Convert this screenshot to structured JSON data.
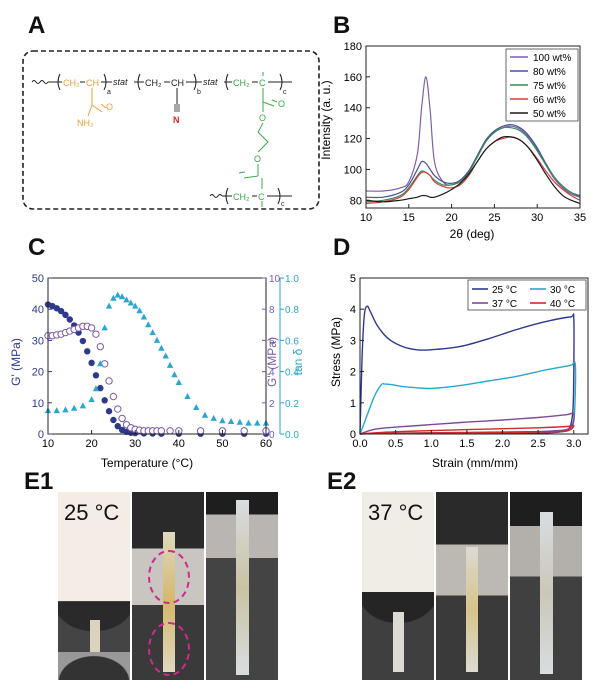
{
  "figure": {
    "panels": {
      "A": "A",
      "B": "B",
      "C": "C",
      "D": "D",
      "E1": "E1",
      "E2": "E2"
    },
    "chemistry": {
      "stat1": "stat",
      "stat2": "stat",
      "ch2": "CH₂",
      "ch": "CH",
      "ch2_b": "CH₂",
      "ch_b": "CH",
      "ch2_c": "CH₂",
      "c_c": "C",
      "c_bottom": "C",
      "ch2_bottom": "CH₂",
      "nh2": "NH₂",
      "n": "N",
      "o": "O",
      "o2": "O",
      "o3": "O",
      "o4": "O",
      "sub_a": "a",
      "sub_b": "b",
      "sub_c": "c",
      "sub_c2": "c",
      "colors": {
        "acrylamide": "#e8a13a",
        "nitrile": "#d42a2a",
        "pegda": "#3aaa4a",
        "backbone": "#222222"
      }
    },
    "photos": {
      "e1_temp": "25 °C",
      "e2_temp": "37 °C",
      "highlight_color": "#d02a8c"
    }
  },
  "chart_data": [
    {
      "id": "B",
      "type": "line",
      "title": "",
      "xlabel": "2θ (deg)",
      "ylabel": "Intensity (a. u.)",
      "xlim": [
        10,
        35
      ],
      "ylim": [
        75,
        180
      ],
      "xticks": [
        10,
        15,
        20,
        25,
        30,
        35
      ],
      "yticks": [
        80,
        100,
        120,
        140,
        160,
        180
      ],
      "legend_position": "top-right",
      "series": [
        {
          "name": "100 wt%",
          "color": "#7d5fb0",
          "x": [
            10,
            12,
            14,
            15,
            16,
            16.5,
            17,
            17.5,
            18,
            19,
            20,
            21,
            22,
            23,
            24,
            25,
            26,
            27,
            28,
            29,
            30,
            31,
            32,
            33,
            34,
            35
          ],
          "y": [
            86,
            86,
            88,
            92,
            110,
            140,
            160,
            138,
            105,
            92,
            90,
            93,
            99,
            108,
            118,
            124,
            127,
            128,
            126,
            121,
            113,
            103,
            94,
            88,
            84,
            82
          ]
        },
        {
          "name": "80 wt%",
          "color": "#4a4e9c",
          "x": [
            10,
            12,
            14,
            15,
            16,
            16.5,
            17,
            17.5,
            18,
            19,
            20,
            21,
            22,
            23,
            24,
            25,
            26,
            27,
            28,
            29,
            30,
            31,
            32,
            33,
            34,
            35
          ],
          "y": [
            82,
            82,
            85,
            90,
            100,
            105,
            104,
            100,
            96,
            92,
            91,
            93,
            99,
            109,
            119,
            125,
            128,
            129,
            127,
            122,
            114,
            104,
            95,
            89,
            85,
            83
          ]
        },
        {
          "name": "75 wt%",
          "color": "#2e8f5a",
          "x": [
            10,
            12,
            14,
            15,
            16,
            16.5,
            17,
            17.5,
            18,
            19,
            20,
            21,
            22,
            23,
            24,
            25,
            26,
            27,
            28,
            29,
            30,
            31,
            32,
            33,
            34,
            35
          ],
          "y": [
            79,
            80,
            83,
            88,
            96,
            99,
            98,
            96,
            93,
            90,
            90,
            92,
            98,
            108,
            118,
            124,
            127,
            127,
            125,
            120,
            112,
            103,
            95,
            89,
            85,
            82
          ]
        },
        {
          "name": "66 wt%",
          "color": "#d64040",
          "x": [
            10,
            12,
            14,
            15,
            16,
            16.5,
            17,
            17.5,
            18,
            19,
            20,
            21,
            22,
            23,
            24,
            25,
            26,
            27,
            28,
            29,
            30,
            31,
            32,
            33,
            34,
            35
          ],
          "y": [
            78,
            79,
            82,
            87,
            95,
            98,
            98,
            96,
            92,
            89,
            88,
            90,
            96,
            105,
            113,
            118,
            120,
            121,
            119,
            114,
            107,
            99,
            92,
            87,
            83,
            80
          ]
        },
        {
          "name": "50 wt%",
          "color": "#1a1a1a",
          "x": [
            10,
            12,
            14,
            15,
            16,
            16.5,
            17,
            17.5,
            18,
            19,
            20,
            21,
            22,
            23,
            24,
            25,
            26,
            27,
            28,
            29,
            30,
            31,
            32,
            33,
            34,
            35
          ],
          "y": [
            80,
            79,
            80,
            81,
            82,
            83,
            83,
            82,
            82,
            84,
            87,
            91,
            97,
            105,
            113,
            118,
            121,
            121,
            119,
            114,
            106,
            97,
            89,
            83,
            80,
            78
          ]
        }
      ]
    },
    {
      "id": "C",
      "type": "scatter",
      "title": "",
      "xlabel": "Temperature (°C)",
      "ylabel_left": "G' (MPa)",
      "ylabel_mid": "G'' (MPa)",
      "ylabel_right": "tan δ",
      "xlim": [
        10,
        60
      ],
      "ylim_left": [
        0,
        50
      ],
      "ylim_mid": [
        0,
        10
      ],
      "ylim_right": [
        0,
        1.0
      ],
      "xticks": [
        10,
        20,
        30,
        40,
        50,
        60
      ],
      "yticks_left": [
        0,
        10,
        20,
        30,
        40,
        50
      ],
      "yticks_mid": [
        0,
        2,
        4,
        6,
        8,
        10
      ],
      "yticks_right": [
        0.0,
        0.2,
        0.4,
        0.6,
        0.8,
        1.0
      ],
      "legend_position": "none",
      "series": [
        {
          "name": "G'",
          "axis": "left",
          "color": "#2d3a8c",
          "marker": "circle-filled",
          "x": [
            10,
            11,
            12,
            13,
            14,
            15,
            16,
            17,
            18,
            19,
            20,
            21,
            22,
            23,
            24,
            25,
            26,
            27,
            28,
            29,
            30,
            32,
            34,
            36,
            40,
            45,
            50,
            55,
            60
          ],
          "y": [
            41.5,
            41,
            40.3,
            39.4,
            38.2,
            36.7,
            34.8,
            32.5,
            29.8,
            26.5,
            22.8,
            18.8,
            14.7,
            10.8,
            7.3,
            4.5,
            2.5,
            1.3,
            0.7,
            0.4,
            0.3,
            0.2,
            0.15,
            0.1,
            0.1,
            0.1,
            0.1,
            0.1,
            0.1
          ]
        },
        {
          "name": "G''",
          "axis": "mid",
          "color": "#7a5aa8",
          "marker": "circle-open",
          "x": [
            10,
            11,
            12,
            13,
            14,
            15,
            16,
            17,
            18,
            19,
            20,
            21,
            22,
            23,
            24,
            25,
            26,
            27,
            28,
            29,
            30,
            31,
            32,
            33,
            34,
            35,
            36,
            38,
            40,
            45,
            50,
            55,
            60
          ],
          "y": [
            6.3,
            6.3,
            6.35,
            6.4,
            6.5,
            6.6,
            6.7,
            6.8,
            6.9,
            6.9,
            6.8,
            6.4,
            5.6,
            4.5,
            3.4,
            2.4,
            1.6,
            1.0,
            0.6,
            0.4,
            0.3,
            0.25,
            0.2,
            0.2,
            0.2,
            0.2,
            0.2,
            0.2,
            0.2,
            0.2,
            0.2,
            0.2,
            0.2
          ]
        },
        {
          "name": "tan δ",
          "axis": "right",
          "color": "#2aa6cf",
          "marker": "triangle",
          "x": [
            10,
            12,
            14,
            16,
            18,
            20,
            21,
            22,
            23,
            24,
            25,
            26,
            27,
            28,
            29,
            30,
            31,
            32,
            33,
            34,
            35,
            36,
            37,
            38,
            39,
            40,
            42,
            44,
            46,
            48,
            50,
            52,
            54,
            56,
            58,
            60
          ],
          "y": [
            0.15,
            0.15,
            0.155,
            0.165,
            0.18,
            0.22,
            0.29,
            0.45,
            0.68,
            0.82,
            0.87,
            0.89,
            0.88,
            0.86,
            0.84,
            0.82,
            0.79,
            0.75,
            0.7,
            0.65,
            0.6,
            0.55,
            0.5,
            0.44,
            0.38,
            0.33,
            0.24,
            0.17,
            0.12,
            0.1,
            0.085,
            0.08,
            0.075,
            0.07,
            0.07,
            0.07
          ]
        }
      ]
    },
    {
      "id": "D",
      "type": "line",
      "title": "",
      "xlabel": "Strain (mm/mm)",
      "ylabel": "Stress (MPa)",
      "xlim": [
        0,
        3.2
      ],
      "ylim": [
        0,
        5
      ],
      "xticks": [
        0.0,
        0.5,
        1.0,
        1.5,
        2.0,
        2.5,
        3.0
      ],
      "yticks": [
        0,
        1,
        2,
        3,
        4,
        5
      ],
      "legend_position": "top-right",
      "series": [
        {
          "name": "25 °C",
          "color": "#2d3a8c",
          "x": [
            0,
            0.03,
            0.06,
            0.1,
            0.15,
            0.25,
            0.4,
            0.6,
            0.8,
            1.0,
            1.4,
            1.8,
            2.2,
            2.6,
            2.95,
            3.0,
            3.0,
            2.99,
            2.95,
            2.85,
            2.6,
            2.2,
            1.6,
            1.0,
            0.6,
            0.3,
            0.15,
            0.05,
            0
          ],
          "y": [
            0,
            2.5,
            3.8,
            4.1,
            3.9,
            3.45,
            3.05,
            2.8,
            2.7,
            2.7,
            2.8,
            3.05,
            3.35,
            3.6,
            3.75,
            3.7,
            2.0,
            0.8,
            0.25,
            0.08,
            0.04,
            0.03,
            0.03,
            0.03,
            0.02,
            0.02,
            0.02,
            0.01,
            0
          ]
        },
        {
          "name": "30 °C",
          "color": "#2aa6cf",
          "x": [
            0,
            0.05,
            0.1,
            0.2,
            0.3,
            0.35,
            0.45,
            0.6,
            0.8,
            1.0,
            1.4,
            1.8,
            2.2,
            2.6,
            2.95,
            3.02,
            3.02,
            3.0,
            2.95,
            2.85,
            2.6,
            2.2,
            1.6,
            1.0,
            0.5,
            0.2,
            0.05,
            0
          ],
          "y": [
            0,
            0.3,
            0.6,
            1.2,
            1.58,
            1.6,
            1.58,
            1.52,
            1.48,
            1.46,
            1.55,
            1.7,
            1.85,
            2.05,
            2.2,
            2.25,
            1.2,
            0.4,
            0.15,
            0.08,
            0.06,
            0.05,
            0.04,
            0.04,
            0.03,
            0.02,
            0.01,
            0
          ]
        },
        {
          "name": "37 °C",
          "color": "#7d4a9c",
          "x": [
            0,
            0.2,
            0.5,
            1.0,
            1.5,
            2.0,
            2.5,
            2.9,
            3.0,
            2.95,
            2.7,
            2.2,
            1.5,
            0.8,
            0.3,
            0.1,
            0
          ],
          "y": [
            0,
            0.15,
            0.22,
            0.3,
            0.38,
            0.45,
            0.53,
            0.62,
            0.65,
            0.2,
            0.1,
            0.07,
            0.05,
            0.03,
            0.02,
            0.01,
            0
          ]
        },
        {
          "name": "40 °C",
          "color": "#d02a2a",
          "x": [
            0,
            0.3,
            0.6,
            1.0,
            1.5,
            2.0,
            2.5,
            2.9,
            3.0,
            2.9,
            2.5,
            2.0,
            1.4,
            0.8,
            0.3,
            0
          ],
          "y": [
            0,
            0.05,
            0.08,
            0.11,
            0.14,
            0.17,
            0.2,
            0.24,
            0.27,
            0.1,
            0.06,
            0.05,
            0.04,
            0.03,
            0.02,
            0
          ]
        }
      ]
    }
  ]
}
